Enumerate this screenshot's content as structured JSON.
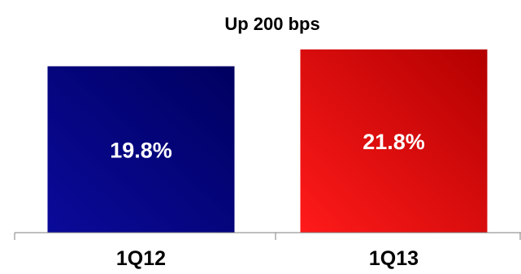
{
  "chart_data": {
    "type": "bar",
    "title": "Up 200 bps",
    "categories": [
      "1Q12",
      "1Q13"
    ],
    "values": [
      19.8,
      21.8
    ],
    "value_labels": [
      "19.8%",
      "21.8%"
    ],
    "xlabel": "",
    "ylabel": "",
    "ylim": [
      0,
      21.8
    ],
    "grid": false,
    "legend": "none",
    "colors": {
      "bar_1q12_light": "#0a0a9a",
      "bar_1q12_dark": "#000060",
      "bar_1q13_light": "#ff1a1a",
      "bar_1q13_dark": "#b30000",
      "label_color": "#ffffff",
      "title_color": "#000000",
      "axis_color": "#7f7f7f"
    }
  }
}
